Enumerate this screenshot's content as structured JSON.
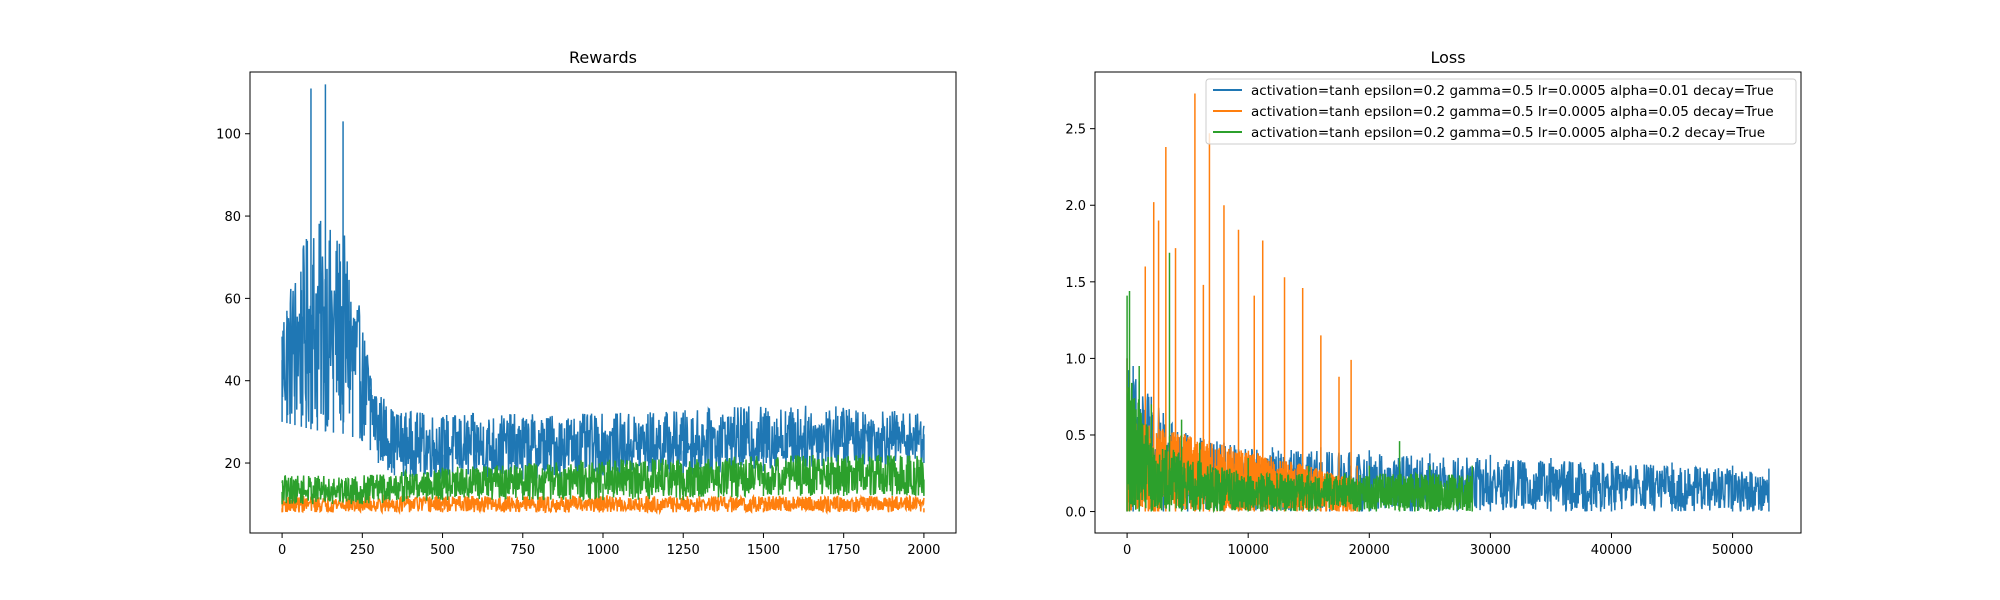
{
  "chart_data": [
    {
      "type": "line",
      "title": "Rewards",
      "xlabel": "",
      "ylabel": "",
      "xlim": [
        -100,
        2100
      ],
      "ylim": [
        3,
        115
      ],
      "xticks": [
        0,
        250,
        500,
        750,
        1000,
        1250,
        1500,
        1750,
        2000
      ],
      "yticks": [
        20,
        40,
        60,
        80,
        100
      ],
      "x_range": [
        0,
        2000
      ],
      "grid": false,
      "series": [
        {
          "color": "#1f77b4",
          "points": [
            [
              0,
              45
            ],
            [
              15,
              57
            ],
            [
              25,
              40
            ],
            [
              40,
              50
            ],
            [
              60,
              62
            ],
            [
              75,
              55
            ],
            [
              90,
              111
            ],
            [
              110,
              60
            ],
            [
              135,
              112
            ],
            [
              160,
              50
            ],
            [
              190,
              103
            ],
            [
              220,
              50
            ],
            [
              250,
              42
            ],
            [
              275,
              38
            ],
            [
              300,
              30
            ],
            [
              350,
              27
            ],
            [
              400,
              24
            ],
            [
              500,
              22
            ],
            [
              600,
              22
            ],
            [
              750,
              21
            ],
            [
              1000,
              22
            ],
            [
              1250,
              23
            ],
            [
              1500,
              24
            ],
            [
              1750,
              25
            ],
            [
              2000,
              27
            ]
          ],
          "band": [
            [
              0,
              30,
              59
            ],
            [
              100,
              28,
              80
            ],
            [
              200,
              27,
              75
            ],
            [
              260,
              25,
              50
            ],
            [
              300,
              20,
              38
            ],
            [
              350,
              17,
              33
            ],
            [
              500,
              16,
              32
            ],
            [
              750,
              16,
              32
            ],
            [
              1000,
              17,
              32
            ],
            [
              1250,
              17,
              33
            ],
            [
              1500,
              18,
              34
            ],
            [
              1750,
              19,
              34
            ],
            [
              2000,
              20,
              32
            ]
          ]
        },
        {
          "color": "#ff7f0e",
          "points": [
            [
              0,
              9
            ],
            [
              500,
              9
            ],
            [
              1000,
              9
            ],
            [
              1500,
              9
            ],
            [
              2000,
              9
            ]
          ],
          "band": [
            [
              0,
              8,
              12
            ],
            [
              500,
              8,
              12
            ],
            [
              1000,
              8,
              12
            ],
            [
              1500,
              8,
              12
            ],
            [
              2000,
              8,
              12
            ]
          ]
        },
        {
          "color": "#2ca02c",
          "points": [
            [
              0,
              13
            ],
            [
              250,
              13
            ],
            [
              500,
              14
            ],
            [
              750,
              15
            ],
            [
              1000,
              15
            ],
            [
              1250,
              15
            ],
            [
              1500,
              15
            ],
            [
              1750,
              16
            ],
            [
              2000,
              16
            ]
          ],
          "band": [
            [
              0,
              10,
              17
            ],
            [
              250,
              10,
              17
            ],
            [
              500,
              11,
              19
            ],
            [
              750,
              11,
              20
            ],
            [
              1000,
              11,
              21
            ],
            [
              1250,
              11,
              21
            ],
            [
              1500,
              12,
              22
            ],
            [
              1750,
              12,
              22
            ],
            [
              2000,
              12,
              22
            ]
          ]
        }
      ]
    },
    {
      "type": "line",
      "title": "Loss",
      "xlabel": "",
      "ylabel": "",
      "xlim": [
        -2650,
        55650
      ],
      "ylim": [
        -0.14,
        2.87
      ],
      "xticks": [
        0,
        10000,
        20000,
        30000,
        40000,
        50000
      ],
      "yticks": [
        0.0,
        0.5,
        1.0,
        1.5,
        2.0,
        2.5
      ],
      "grid": false,
      "legend_position": "upper right",
      "series": [
        {
          "name": "activation=tanh epsilon=0.2 gamma=0.5 lr=0.0005 alpha=0.01 decay=True",
          "color": "#1f77b4",
          "x_range": [
            0,
            53000
          ],
          "points": [
            [
              0,
              1.0
            ],
            [
              500,
              0.95
            ],
            [
              1000,
              0.85
            ],
            [
              2000,
              0.75
            ],
            [
              3000,
              0.6
            ],
            [
              5000,
              0.5
            ],
            [
              8000,
              0.45
            ],
            [
              12000,
              0.42
            ],
            [
              16000,
              0.42
            ],
            [
              20000,
              0.4
            ],
            [
              25000,
              0.38
            ],
            [
              30000,
              0.37
            ],
            [
              35000,
              0.35
            ],
            [
              40000,
              0.33
            ],
            [
              45000,
              0.32
            ],
            [
              50000,
              0.3
            ],
            [
              53000,
              0.28
            ]
          ],
          "band": [
            [
              0,
              0.0,
              1.0
            ],
            [
              2000,
              0.0,
              0.75
            ],
            [
              5000,
              0.0,
              0.5
            ],
            [
              10000,
              0.0,
              0.42
            ],
            [
              20000,
              0.0,
              0.38
            ],
            [
              30000,
              0.0,
              0.35
            ],
            [
              40000,
              0.0,
              0.32
            ],
            [
              50000,
              0.0,
              0.28
            ],
            [
              53000,
              0.0,
              0.26
            ]
          ]
        },
        {
          "name": "activation=tanh epsilon=0.2 gamma=0.5 lr=0.0005 alpha=0.05 decay=True",
          "color": "#ff7f0e",
          "x_range": [
            0,
            19000
          ],
          "points": [
            [
              0,
              1.0
            ],
            [
              1500,
              1.6
            ],
            [
              2200,
              2.02
            ],
            [
              2600,
              1.9
            ],
            [
              3200,
              2.38
            ],
            [
              4000,
              1.72
            ],
            [
              5600,
              2.73
            ],
            [
              6300,
              1.48
            ],
            [
              6800,
              2.47
            ],
            [
              8000,
              2.0
            ],
            [
              9200,
              1.84
            ],
            [
              10500,
              1.41
            ],
            [
              11200,
              1.77
            ],
            [
              13000,
              1.53
            ],
            [
              14500,
              1.46
            ],
            [
              16000,
              1.15
            ],
            [
              17500,
              0.88
            ],
            [
              18500,
              0.99
            ],
            [
              19000,
              0.3
            ]
          ],
          "band": [
            [
              0,
              0.0,
              0.6
            ],
            [
              5000,
              0.0,
              0.5
            ],
            [
              10000,
              0.0,
              0.4
            ],
            [
              15000,
              0.0,
              0.3
            ],
            [
              19000,
              0.0,
              0.2
            ]
          ]
        },
        {
          "name": "activation=tanh epsilon=0.2 gamma=0.5 lr=0.0005 alpha=0.2 decay=True",
          "color": "#2ca02c",
          "x_range": [
            0,
            28500
          ],
          "points": [
            [
              0,
              1.41
            ],
            [
              200,
              1.44
            ],
            [
              1000,
              0.95
            ],
            [
              2000,
              0.7
            ],
            [
              3500,
              1.69
            ],
            [
              4500,
              0.6
            ],
            [
              6000,
              0.45
            ],
            [
              10000,
              0.35
            ],
            [
              15000,
              0.3
            ],
            [
              20000,
              0.3
            ],
            [
              22500,
              0.46
            ],
            [
              25000,
              0.3
            ],
            [
              28500,
              0.3
            ]
          ],
          "band": [
            [
              0,
              0.0,
              1.0
            ],
            [
              2000,
              0.0,
              0.5
            ],
            [
              5000,
              0.0,
              0.35
            ],
            [
              10000,
              0.0,
              0.25
            ],
            [
              20000,
              0.0,
              0.25
            ],
            [
              28500,
              0.0,
              0.25
            ]
          ]
        }
      ]
    }
  ]
}
